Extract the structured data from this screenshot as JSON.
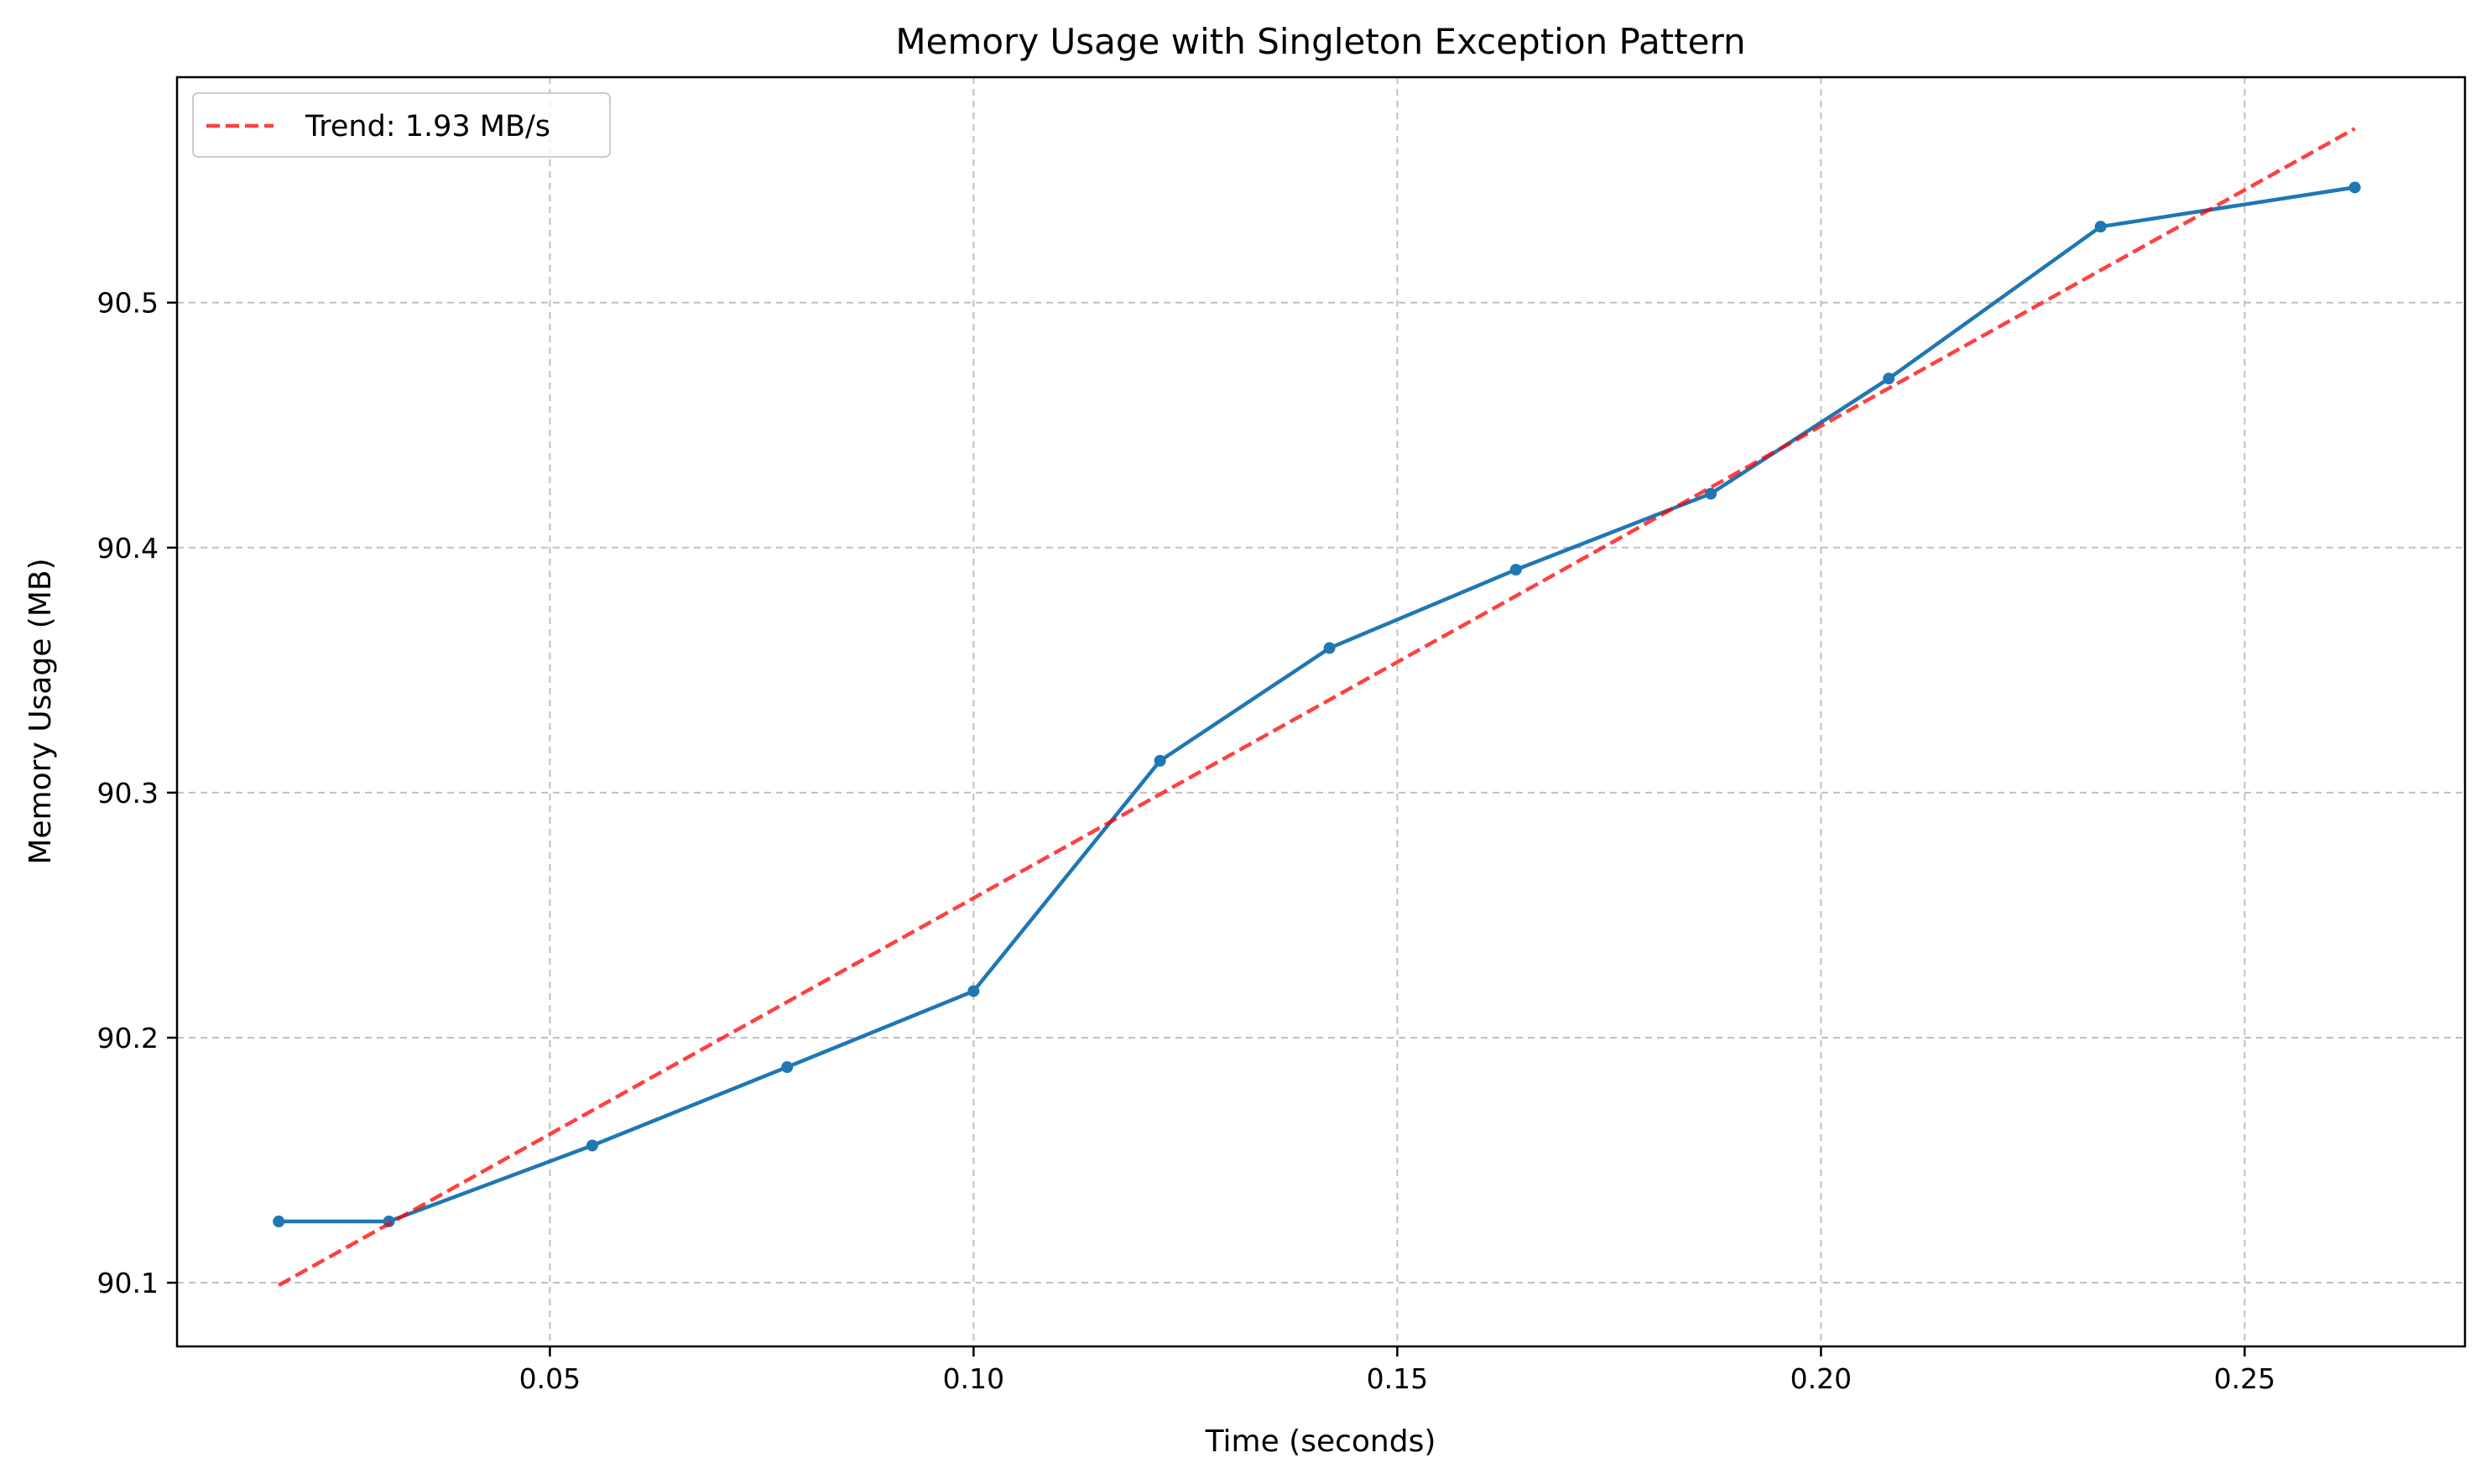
{
  "chart_data": {
    "type": "line",
    "title": "Memory Usage with Singleton Exception Pattern",
    "xlabel": "Time (seconds)",
    "ylabel": "Memory Usage (MB)",
    "xlim": [
      0.006,
      0.276
    ],
    "ylim": [
      90.074,
      90.592
    ],
    "x_ticks": [
      0.05,
      0.1,
      0.15,
      0.2,
      0.25
    ],
    "x_tick_labels": [
      "0.05",
      "0.10",
      "0.15",
      "0.20",
      "0.25"
    ],
    "y_ticks": [
      90.1,
      90.2,
      90.3,
      90.4,
      90.5
    ],
    "y_tick_labels": [
      "90.1",
      "90.2",
      "90.3",
      "90.4",
      "90.5"
    ],
    "grid": true,
    "legend_position": "top-left",
    "series": [
      {
        "type": "line",
        "color": "#1f77b4",
        "marker": "circle",
        "x": [
          0.018,
          0.031,
          0.055,
          0.078,
          0.1,
          0.122,
          0.142,
          0.164,
          0.187,
          0.208,
          0.233,
          0.263
        ],
        "y": [
          90.125,
          90.125,
          90.156,
          90.188,
          90.219,
          90.313,
          90.359,
          90.391,
          90.422,
          90.469,
          90.531,
          90.547
        ]
      },
      {
        "type": "trend",
        "name": "Trend: 1.93 MB/s",
        "color": "#ff0000",
        "dashed": true,
        "x": [
          0.018,
          0.263
        ],
        "y": [
          90.099,
          90.571
        ]
      }
    ]
  }
}
